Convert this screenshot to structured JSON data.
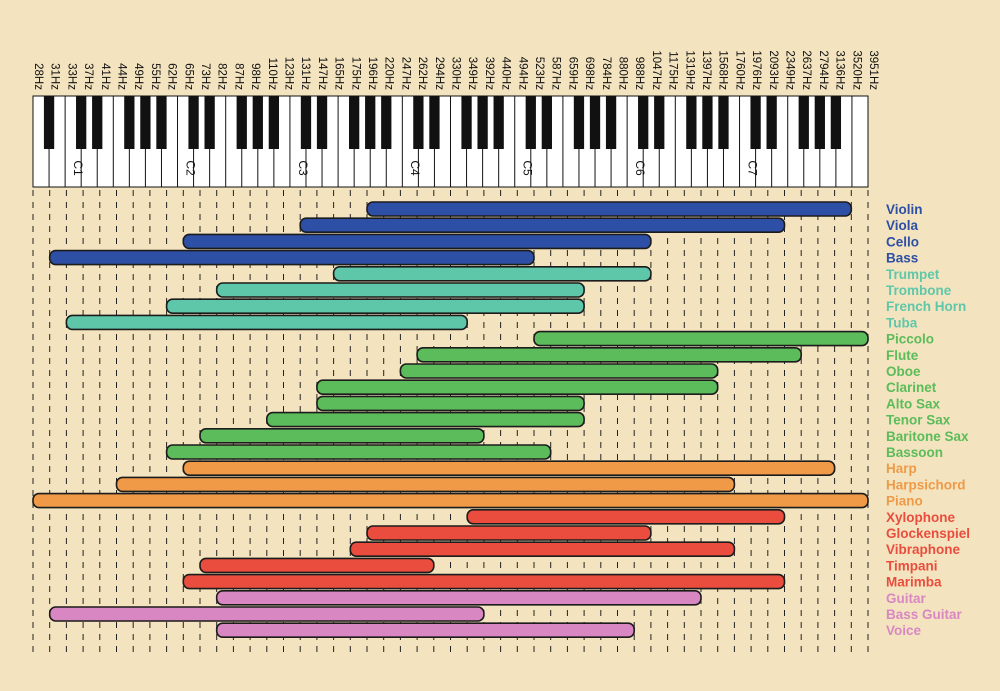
{
  "chart_data": {
    "type": "range",
    "title": "",
    "frequency_unit": "Hz",
    "frequency_labels": [
      "28Hz",
      "31Hz",
      "33Hz",
      "37Hz",
      "41Hz",
      "44Hz",
      "49Hz",
      "55Hz",
      "62Hz",
      "65Hz",
      "73Hz",
      "82Hz",
      "87Hz",
      "98Hz",
      "110Hz",
      "123Hz",
      "131Hz",
      "147Hz",
      "165Hz",
      "175Hz",
      "196Hz",
      "220Hz",
      "247Hz",
      "262Hz",
      "294Hz",
      "330Hz",
      "349Hz",
      "392Hz",
      "440Hz",
      "494Hz",
      "523Hz",
      "587Hz",
      "659Hz",
      "698Hz",
      "784Hz",
      "880Hz",
      "988Hz",
      "1047Hz",
      "1175Hz",
      "1319Hz",
      "1397Hz",
      "1568Hz",
      "1760Hz",
      "1976Hz",
      "2093Hz",
      "2349Hz",
      "2637Hz",
      "2794Hz",
      "3136Hz",
      "3520Hz",
      "3951Hz"
    ],
    "octave_labels": [
      "C1",
      "C2",
      "C3",
      "C4",
      "C5",
      "C6",
      "C7"
    ],
    "families": {
      "Strings": "#2e4fa6",
      "Brass": "#5fc7a9",
      "Woodwinds": "#5cbb5a",
      "Keyboards": "#f09a48",
      "Percussion": "#ea4d3d",
      "Other": "#d987c2"
    },
    "instruments": [
      {
        "name": "Violin",
        "family": "Strings",
        "low": "196Hz",
        "high": "3520Hz"
      },
      {
        "name": "Viola",
        "family": "Strings",
        "low": "131Hz",
        "high": "2349Hz"
      },
      {
        "name": "Cello",
        "family": "Strings",
        "low": "65Hz",
        "high": "1047Hz"
      },
      {
        "name": "Bass",
        "family": "Strings",
        "low": "31Hz",
        "high": "523Hz"
      },
      {
        "name": "Trumpet",
        "family": "Brass",
        "low": "165Hz",
        "high": "1047Hz"
      },
      {
        "name": "Trombone",
        "family": "Brass",
        "low": "82Hz",
        "high": "698Hz"
      },
      {
        "name": "French Horn",
        "family": "Brass",
        "low": "62Hz",
        "high": "698Hz"
      },
      {
        "name": "Tuba",
        "family": "Brass",
        "low": "33Hz",
        "high": "349Hz"
      },
      {
        "name": "Piccolo",
        "family": "Woodwinds",
        "low": "523Hz",
        "high": "3951Hz"
      },
      {
        "name": "Flute",
        "family": "Woodwinds",
        "low": "262Hz",
        "high": "2637Hz"
      },
      {
        "name": "Oboe",
        "family": "Woodwinds",
        "low": "247Hz",
        "high": "1568Hz"
      },
      {
        "name": "Clarinet",
        "family": "Woodwinds",
        "low": "147Hz",
        "high": "1568Hz"
      },
      {
        "name": "Alto Sax",
        "family": "Woodwinds",
        "low": "147Hz",
        "high": "698Hz"
      },
      {
        "name": "Tenor Sax",
        "family": "Woodwinds",
        "low": "110Hz",
        "high": "698Hz"
      },
      {
        "name": "Baritone Sax",
        "family": "Woodwinds",
        "low": "73Hz",
        "high": "392Hz"
      },
      {
        "name": "Bassoon",
        "family": "Woodwinds",
        "low": "62Hz",
        "high": "587Hz"
      },
      {
        "name": "Harp",
        "family": "Keyboards",
        "low": "65Hz",
        "high": "3136Hz"
      },
      {
        "name": "Harpsichord",
        "family": "Keyboards",
        "low": "44Hz",
        "high": "1760Hz"
      },
      {
        "name": "Piano",
        "family": "Keyboards",
        "low": "28Hz",
        "high": "3951Hz"
      },
      {
        "name": "Xylophone",
        "family": "Percussion",
        "low": "349Hz",
        "high": "2349Hz"
      },
      {
        "name": "Glockenspiel",
        "family": "Percussion",
        "low": "196Hz",
        "high": "1047Hz"
      },
      {
        "name": "Vibraphone",
        "family": "Percussion",
        "low": "175Hz",
        "high": "1760Hz"
      },
      {
        "name": "Timpani",
        "family": "Percussion",
        "low": "73Hz",
        "high": "294Hz"
      },
      {
        "name": "Marimba",
        "family": "Percussion",
        "low": "65Hz",
        "high": "2349Hz"
      },
      {
        "name": "Guitar",
        "family": "Other",
        "low": "82Hz",
        "high": "1397Hz"
      },
      {
        "name": "Bass Guitar",
        "family": "Other",
        "low": "31Hz",
        "high": "392Hz"
      },
      {
        "name": "Voice",
        "family": "Other",
        "low": "82Hz",
        "high": "988Hz"
      }
    ]
  }
}
